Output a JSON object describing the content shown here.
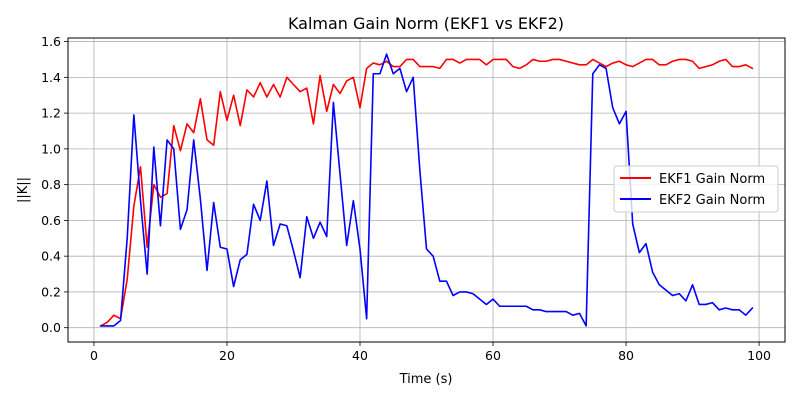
{
  "chart_data": {
    "type": "line",
    "title": "Kalman Gain Norm (EKF1 vs EKF2)",
    "xlabel": "Time (s)",
    "ylabel": "||K||",
    "xlim": [
      -3.9,
      103.9
    ],
    "ylim": [
      -0.08,
      1.62
    ],
    "xticks": [
      0,
      20,
      40,
      60,
      80,
      100
    ],
    "yticks": [
      0.0,
      0.2,
      0.4,
      0.6,
      0.8,
      1.0,
      1.2,
      1.4,
      1.6
    ],
    "xtick_labels": [
      "0",
      "20",
      "40",
      "60",
      "80",
      "100"
    ],
    "ytick_labels": [
      "0.0",
      "0.2",
      "0.4",
      "0.6",
      "0.8",
      "1.0",
      "1.2",
      "1.4",
      "1.6"
    ],
    "grid": true,
    "legend_position": "center-right",
    "x": [
      1,
      2,
      3,
      4,
      5,
      6,
      7,
      8,
      9,
      10,
      11,
      12,
      13,
      14,
      15,
      16,
      17,
      18,
      19,
      20,
      21,
      22,
      23,
      24,
      25,
      26,
      27,
      28,
      29,
      30,
      31,
      32,
      33,
      34,
      35,
      36,
      37,
      38,
      39,
      40,
      41,
      42,
      43,
      44,
      45,
      46,
      47,
      48,
      49,
      50,
      51,
      52,
      53,
      54,
      55,
      56,
      57,
      58,
      59,
      60,
      61,
      62,
      63,
      64,
      65,
      66,
      67,
      68,
      69,
      70,
      71,
      72,
      73,
      74,
      75,
      76,
      77,
      78,
      79,
      80,
      81,
      82,
      83,
      84,
      85,
      86,
      87,
      88,
      89,
      90,
      91,
      92,
      93,
      94,
      95,
      96,
      97,
      98,
      99
    ],
    "series": [
      {
        "name": "EKF1 Gain Norm",
        "color": "#ff0000",
        "values": [
          0.01,
          0.03,
          0.07,
          0.05,
          0.27,
          0.68,
          0.9,
          0.45,
          0.8,
          0.73,
          0.75,
          1.13,
          0.99,
          1.14,
          1.09,
          1.28,
          1.05,
          1.02,
          1.32,
          1.16,
          1.3,
          1.13,
          1.33,
          1.29,
          1.37,
          1.29,
          1.36,
          1.29,
          1.4,
          1.36,
          1.32,
          1.34,
          1.14,
          1.41,
          1.21,
          1.36,
          1.31,
          1.38,
          1.4,
          1.23,
          1.45,
          1.48,
          1.47,
          1.49,
          1.46,
          1.46,
          1.5,
          1.5,
          1.46,
          1.46,
          1.46,
          1.45,
          1.5,
          1.5,
          1.48,
          1.5,
          1.5,
          1.5,
          1.47,
          1.5,
          1.5,
          1.5,
          1.46,
          1.45,
          1.47,
          1.5,
          1.49,
          1.49,
          1.5,
          1.5,
          1.49,
          1.48,
          1.47,
          1.47,
          1.5,
          1.48,
          1.46,
          1.48,
          1.49,
          1.47,
          1.46,
          1.48,
          1.5,
          1.5,
          1.47,
          1.47,
          1.49,
          1.5,
          1.5,
          1.49,
          1.45,
          1.46,
          1.47,
          1.49,
          1.5,
          1.46,
          1.46,
          1.47,
          1.45
        ]
      },
      {
        "name": "EKF2 Gain Norm",
        "color": "#0000ff",
        "values": [
          0.01,
          0.01,
          0.01,
          0.04,
          0.5,
          1.19,
          0.71,
          0.3,
          1.01,
          0.57,
          1.05,
          1.0,
          0.55,
          0.66,
          1.05,
          0.72,
          0.32,
          0.7,
          0.45,
          0.44,
          0.23,
          0.38,
          0.41,
          0.69,
          0.6,
          0.82,
          0.46,
          0.58,
          0.57,
          0.43,
          0.28,
          0.62,
          0.5,
          0.59,
          0.51,
          1.26,
          0.86,
          0.46,
          0.71,
          0.44,
          0.05,
          1.42,
          1.42,
          1.53,
          1.42,
          1.45,
          1.32,
          1.4,
          0.88,
          0.44,
          0.4,
          0.26,
          0.26,
          0.18,
          0.2,
          0.2,
          0.19,
          0.16,
          0.13,
          0.16,
          0.12,
          0.12,
          0.12,
          0.12,
          0.12,
          0.1,
          0.1,
          0.09,
          0.09,
          0.09,
          0.09,
          0.07,
          0.08,
          0.01,
          1.42,
          1.47,
          1.45,
          1.23,
          1.14,
          1.21,
          0.58,
          0.42,
          0.47,
          0.31,
          0.24,
          0.21,
          0.18,
          0.19,
          0.15,
          0.24,
          0.13,
          0.13,
          0.14,
          0.1,
          0.11,
          0.1,
          0.1,
          0.07,
          0.11
        ]
      }
    ]
  }
}
